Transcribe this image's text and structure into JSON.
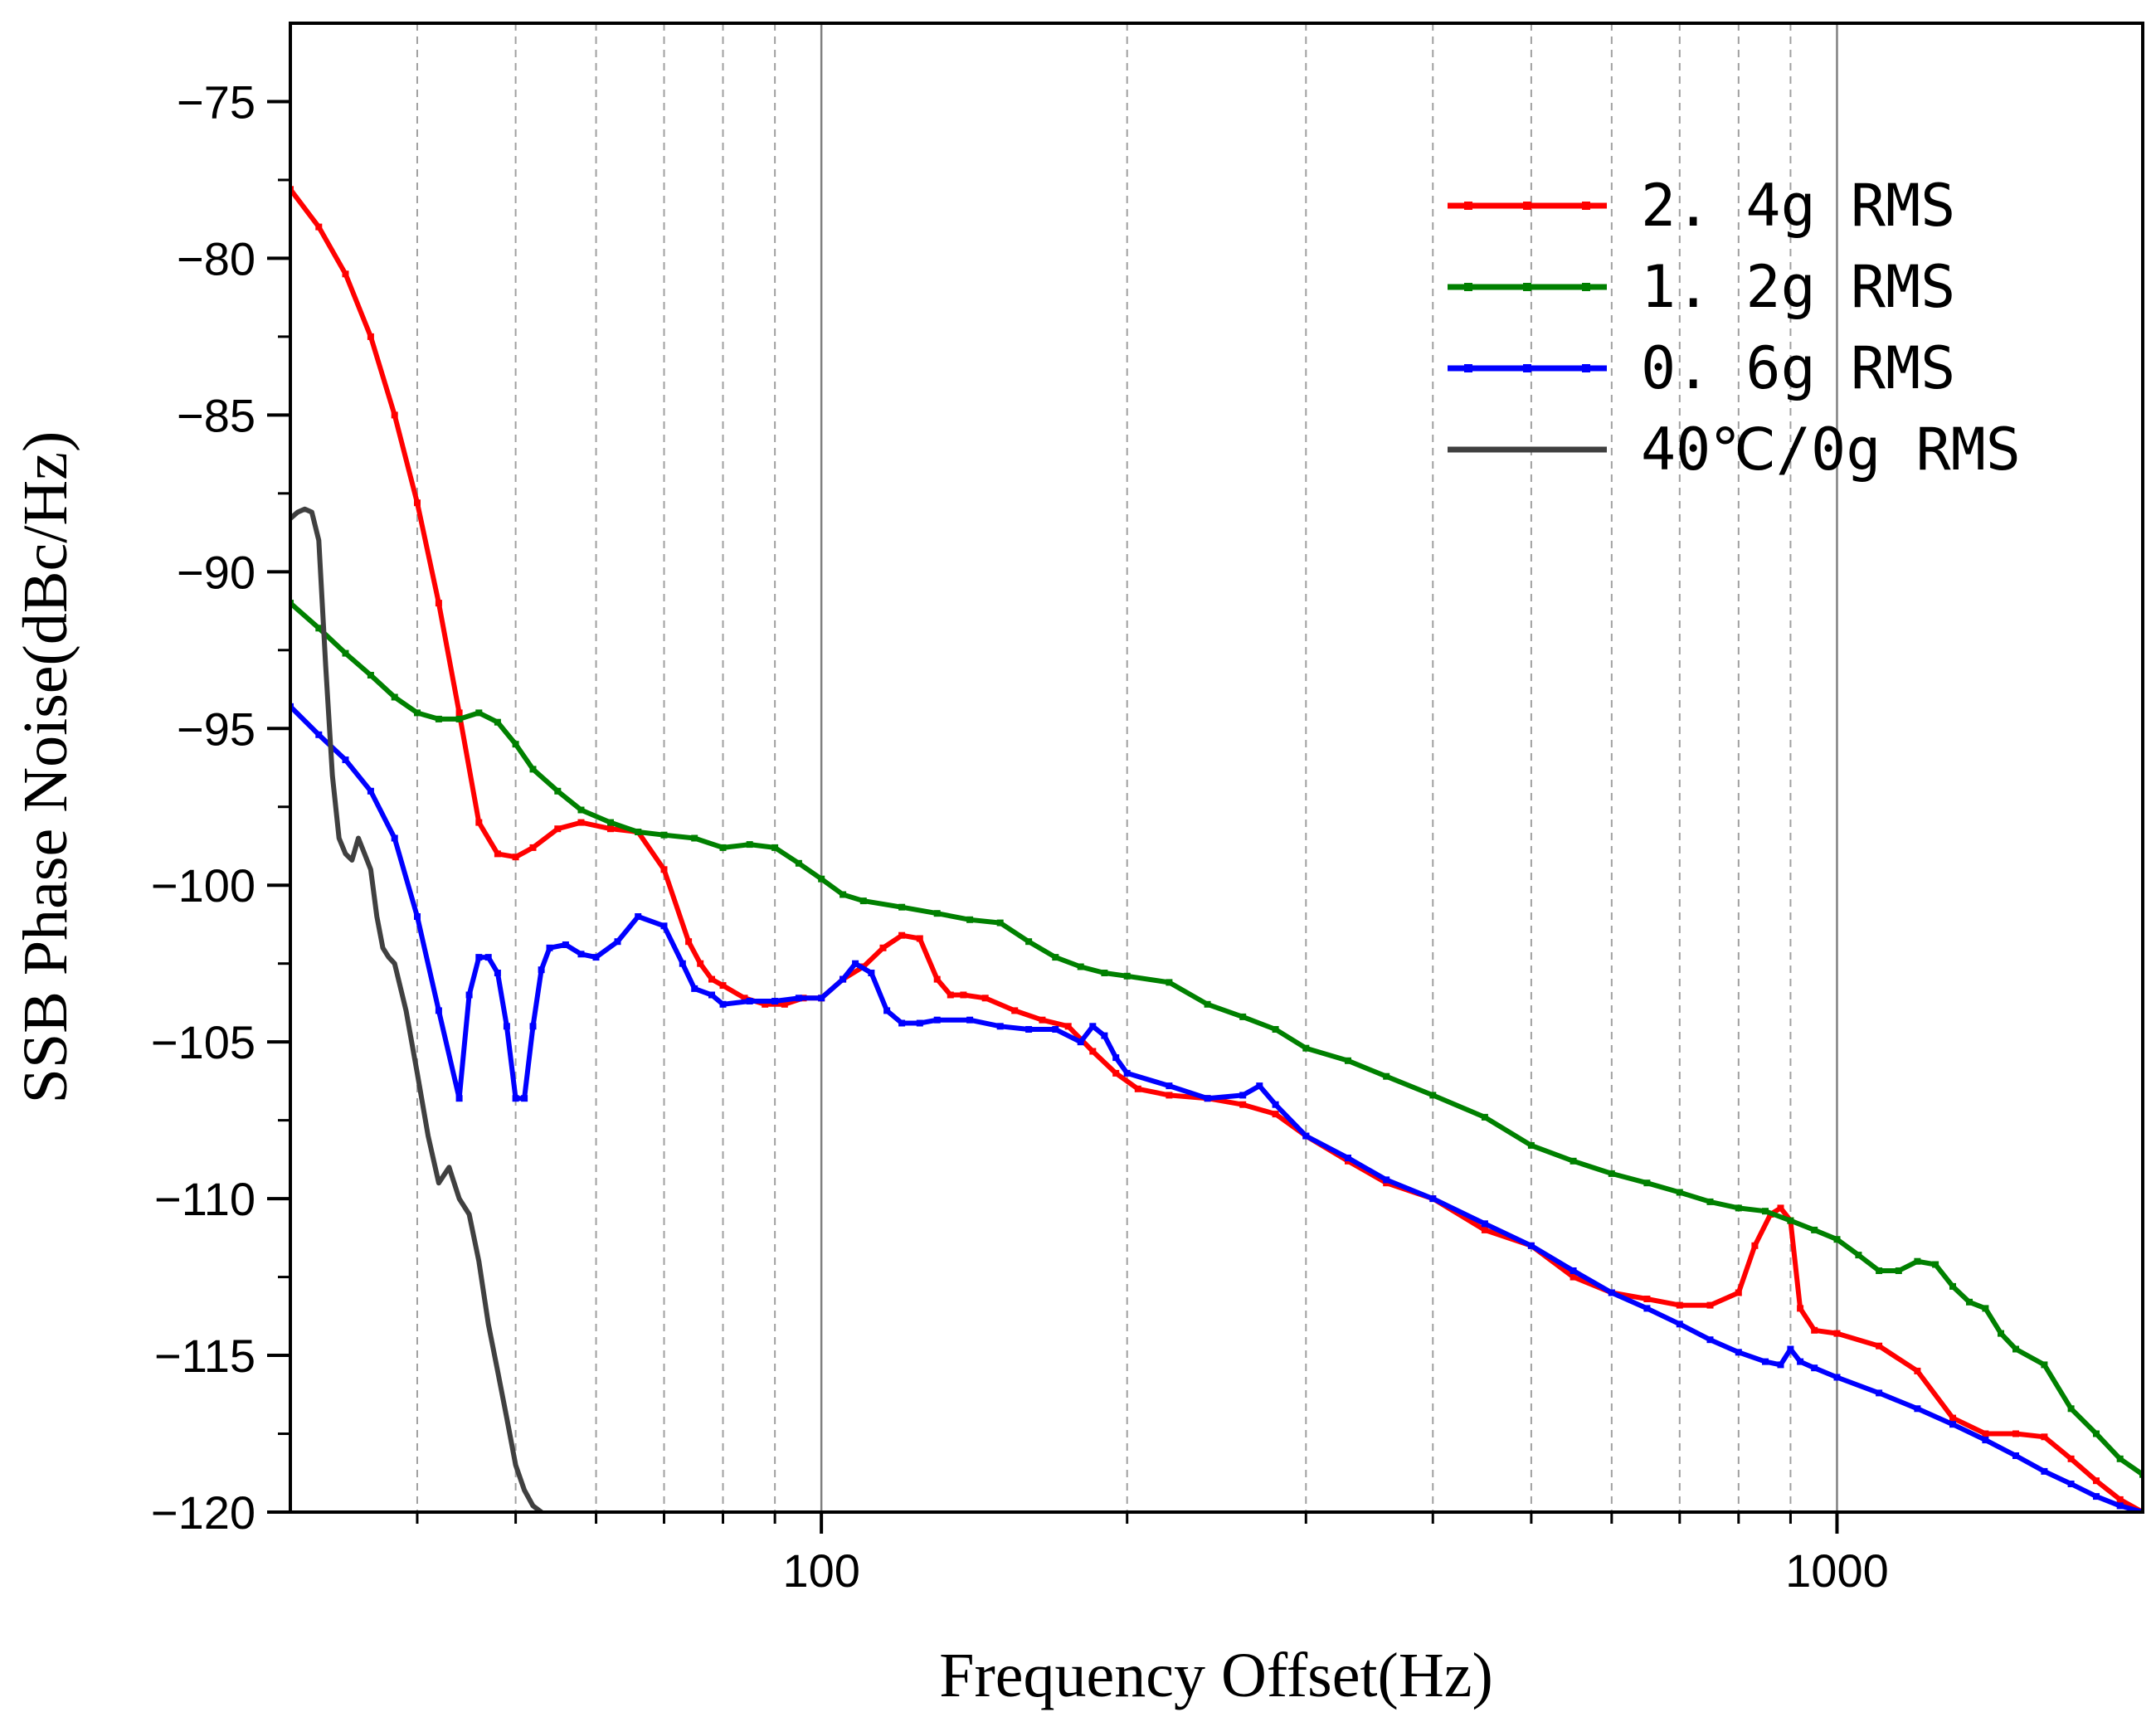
{
  "chart_data": {
    "type": "line",
    "title": "",
    "xlabel": "Frequency Offset(Hz)",
    "ylabel": "SSB Phase Noise(dBc/Hz)",
    "xscale": "log",
    "xlim": [
      30,
      2000
    ],
    "ylim": [
      -120,
      -72.5
    ],
    "major_xticks": [
      100,
      1000
    ],
    "major_xtick_labels": [
      "100",
      "1000"
    ],
    "minor_gridlines": [
      40,
      50,
      60,
      70,
      80,
      90,
      200,
      300,
      400,
      500,
      600,
      700,
      800,
      900
    ],
    "yticks": [
      -75,
      -80,
      -85,
      -90,
      -95,
      -100,
      -105,
      -110,
      -115,
      -120
    ],
    "ytick_labels": [
      "−75",
      "−80",
      "−85",
      "−90",
      "−95",
      "−100",
      "−105",
      "−110",
      "−115",
      "−120"
    ],
    "legend_position": "top-right",
    "series": [
      {
        "name": "2.4g RMS",
        "label": "2. 4g RMS",
        "color": "#ff0000",
        "x": [
          30,
          32,
          34,
          36,
          38,
          40,
          42,
          44,
          46,
          48,
          50,
          52,
          55,
          58,
          62,
          66,
          70,
          74,
          76,
          78,
          80,
          84,
          88,
          92,
          96,
          100,
          105,
          110,
          115,
          120,
          125,
          130,
          134,
          138,
          145,
          155,
          165,
          175,
          185,
          195,
          205,
          220,
          240,
          260,
          280,
          300,
          330,
          360,
          400,
          450,
          500,
          550,
          600,
          650,
          700,
          750,
          800,
          830,
          860,
          880,
          900,
          920,
          950,
          1000,
          1100,
          1200,
          1300,
          1400,
          1500,
          1600,
          1700,
          1800,
          1900,
          2000
        ],
        "values": [
          -77.8,
          -79.0,
          -80.5,
          -82.5,
          -85.0,
          -87.8,
          -91.0,
          -94.5,
          -98.0,
          -99.0,
          -99.1,
          -98.8,
          -98.2,
          -98.0,
          -98.2,
          -98.3,
          -99.5,
          -101.8,
          -102.5,
          -103.0,
          -103.2,
          -103.6,
          -103.8,
          -103.8,
          -103.6,
          -103.6,
          -103.0,
          -102.6,
          -102.0,
          -101.6,
          -101.7,
          -103.0,
          -103.5,
          -103.5,
          -103.6,
          -104.0,
          -104.3,
          -104.5,
          -105.3,
          -106.0,
          -106.5,
          -106.7,
          -106.8,
          -107.0,
          -107.3,
          -108.0,
          -108.8,
          -109.5,
          -110.0,
          -111.0,
          -111.5,
          -112.5,
          -113.0,
          -113.2,
          -113.4,
          -113.4,
          -113.0,
          -111.5,
          -110.5,
          -110.3,
          -110.7,
          -113.5,
          -114.2,
          -114.3,
          -114.7,
          -115.5,
          -117.0,
          -117.5,
          -117.5,
          -117.6,
          -118.3,
          -119.0,
          -119.6,
          -120.0
        ]
      },
      {
        "name": "1.2g RMS",
        "label": "1. 2g RMS",
        "color": "#008000",
        "x": [
          30,
          32,
          34,
          36,
          38,
          40,
          42,
          44,
          46,
          48,
          50,
          52,
          55,
          58,
          62,
          66,
          70,
          75,
          80,
          85,
          90,
          95,
          100,
          105,
          110,
          120,
          130,
          140,
          150,
          160,
          170,
          180,
          190,
          200,
          220,
          240,
          260,
          280,
          300,
          330,
          360,
          400,
          450,
          500,
          550,
          600,
          650,
          700,
          750,
          800,
          850,
          900,
          950,
          1000,
          1050,
          1100,
          1150,
          1200,
          1250,
          1300,
          1350,
          1400,
          1450,
          1500,
          1600,
          1700,
          1800,
          1900,
          2000
        ],
        "values": [
          -91.0,
          -91.8,
          -92.6,
          -93.3,
          -94.0,
          -94.5,
          -94.7,
          -94.7,
          -94.5,
          -94.8,
          -95.5,
          -96.3,
          -97.0,
          -97.6,
          -98.0,
          -98.3,
          -98.4,
          -98.5,
          -98.8,
          -98.7,
          -98.8,
          -99.3,
          -99.8,
          -100.3,
          -100.5,
          -100.7,
          -100.9,
          -101.1,
          -101.2,
          -101.8,
          -102.3,
          -102.6,
          -102.8,
          -102.9,
          -103.1,
          -103.8,
          -104.2,
          -104.6,
          -105.2,
          -105.6,
          -106.1,
          -106.7,
          -107.4,
          -108.3,
          -108.8,
          -109.2,
          -109.5,
          -109.8,
          -110.1,
          -110.3,
          -110.4,
          -110.7,
          -111.0,
          -111.3,
          -111.8,
          -112.3,
          -112.3,
          -112.0,
          -112.1,
          -112.8,
          -113.3,
          -113.5,
          -114.3,
          -114.8,
          -115.3,
          -116.7,
          -117.5,
          -118.3,
          -118.8
        ]
      },
      {
        "name": "0.6g RMS",
        "label": "0. 6g RMS",
        "color": "#0000ff",
        "x": [
          30,
          32,
          34,
          36,
          38,
          40,
          42,
          44,
          45,
          46,
          47,
          48,
          49,
          50,
          51,
          52,
          53,
          54,
          56,
          58,
          60,
          63,
          66,
          70,
          73,
          75,
          78,
          80,
          85,
          90,
          95,
          100,
          105,
          108,
          112,
          116,
          120,
          125,
          130,
          140,
          150,
          160,
          170,
          180,
          185,
          190,
          195,
          200,
          220,
          240,
          260,
          270,
          280,
          300,
          330,
          360,
          400,
          450,
          500,
          550,
          600,
          650,
          700,
          750,
          800,
          850,
          880,
          900,
          920,
          950,
          1000,
          1100,
          1200,
          1300,
          1400,
          1500,
          1600,
          1700,
          1800,
          1900,
          2000
        ],
        "values": [
          -94.3,
          -95.2,
          -96.0,
          -97.0,
          -98.5,
          -101.0,
          -104.0,
          -106.8,
          -103.5,
          -102.3,
          -102.3,
          -102.8,
          -104.5,
          -106.8,
          -106.8,
          -104.5,
          -102.7,
          -102.0,
          -101.9,
          -102.2,
          -102.3,
          -101.8,
          -101.0,
          -101.3,
          -102.5,
          -103.3,
          -103.5,
          -103.8,
          -103.7,
          -103.7,
          -103.6,
          -103.6,
          -103.0,
          -102.5,
          -102.8,
          -104.0,
          -104.4,
          -104.4,
          -104.3,
          -104.3,
          -104.5,
          -104.6,
          -104.6,
          -105.0,
          -104.5,
          -104.8,
          -105.5,
          -106.0,
          -106.4,
          -106.8,
          -106.7,
          -106.4,
          -107.0,
          -108.0,
          -108.7,
          -109.4,
          -110.0,
          -110.8,
          -111.5,
          -112.3,
          -113.0,
          -113.5,
          -114.0,
          -114.5,
          -114.9,
          -115.2,
          -115.3,
          -114.8,
          -115.2,
          -115.4,
          -115.7,
          -116.2,
          -116.7,
          -117.2,
          -117.7,
          -118.2,
          -118.7,
          -119.1,
          -119.5,
          -119.8,
          -120.0
        ]
      },
      {
        "name": "40°C/0g RMS",
        "label": "40℃/0g RMS",
        "color": "#404040",
        "x": [
          30,
          30.5,
          31,
          31.5,
          32,
          32.5,
          33,
          33.5,
          34,
          34.5,
          35,
          35.5,
          36,
          36.5,
          37,
          37.5,
          38,
          39,
          40,
          41,
          42,
          43,
          44,
          45,
          46,
          47,
          48,
          49,
          50,
          51,
          52,
          53
        ],
        "values": [
          -88.3,
          -88.1,
          -88.0,
          -88.1,
          -89.0,
          -93.0,
          -96.5,
          -98.5,
          -99.0,
          -99.2,
          -98.5,
          -99.0,
          -99.5,
          -101.0,
          -102.0,
          -102.3,
          -102.5,
          -104.0,
          -106.0,
          -108.0,
          -109.5,
          -109.0,
          -110.0,
          -110.5,
          -112.0,
          -114.0,
          -115.5,
          -117.0,
          -118.5,
          -119.3,
          -119.8,
          -120.0
        ]
      }
    ]
  }
}
